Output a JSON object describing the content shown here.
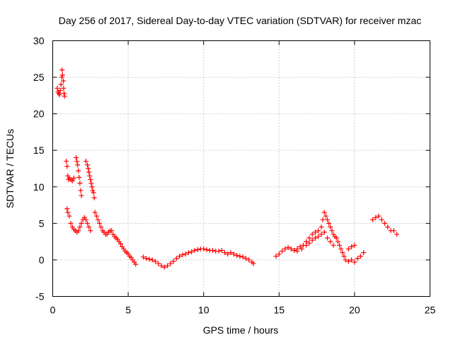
{
  "chart_data": {
    "type": "scatter",
    "title": "Day 256 of 2017, Sidereal Day-to-day VTEC variation (SDTVAR) for receiver mzac",
    "xlabel": "GPS time / hours",
    "ylabel": "SDTVAR / TECUs",
    "xlim": [
      0,
      25
    ],
    "ylim": [
      -5,
      30
    ],
    "xticks": [
      "0",
      "5",
      "10",
      "15",
      "20",
      "25"
    ],
    "yticks": [
      "-5",
      "0",
      "5",
      "10",
      "15",
      "20",
      "25",
      "30"
    ],
    "grid": true,
    "marker": "+",
    "color": "#ff0000",
    "series": [
      {
        "name": "SDTVAR",
        "points": [
          [
            0.3,
            23.5
          ],
          [
            0.35,
            23.0
          ],
          [
            0.4,
            22.8
          ],
          [
            0.45,
            22.6
          ],
          [
            0.5,
            23.2
          ],
          [
            0.55,
            24.0
          ],
          [
            0.6,
            25.0
          ],
          [
            0.62,
            26.0
          ],
          [
            0.65,
            25.3
          ],
          [
            0.7,
            24.5
          ],
          [
            0.72,
            23.5
          ],
          [
            0.75,
            22.8
          ],
          [
            0.78,
            22.4
          ],
          [
            0.9,
            13.5
          ],
          [
            0.95,
            12.8
          ],
          [
            1.0,
            11.5
          ],
          [
            1.05,
            11.0
          ],
          [
            1.1,
            11.2
          ],
          [
            1.2,
            11.0
          ],
          [
            1.3,
            10.8
          ],
          [
            1.4,
            11.2
          ],
          [
            1.55,
            14.0
          ],
          [
            1.6,
            13.5
          ],
          [
            1.65,
            13.0
          ],
          [
            1.7,
            12.2
          ],
          [
            1.75,
            11.3
          ],
          [
            1.8,
            10.5
          ],
          [
            1.85,
            9.5
          ],
          [
            1.9,
            8.8
          ],
          [
            2.2,
            13.5
          ],
          [
            2.3,
            13.0
          ],
          [
            2.35,
            12.5
          ],
          [
            2.4,
            12.0
          ],
          [
            2.45,
            11.5
          ],
          [
            2.5,
            11.0
          ],
          [
            2.55,
            10.5
          ],
          [
            2.6,
            10.0
          ],
          [
            2.65,
            9.5
          ],
          [
            2.7,
            9.2
          ],
          [
            2.75,
            8.5
          ],
          [
            0.95,
            7.0
          ],
          [
            1.0,
            6.5
          ],
          [
            1.1,
            6.0
          ],
          [
            1.2,
            5.0
          ],
          [
            1.3,
            4.5
          ],
          [
            1.4,
            4.2
          ],
          [
            1.5,
            4.0
          ],
          [
            1.6,
            3.8
          ],
          [
            1.7,
            4.0
          ],
          [
            1.8,
            4.5
          ],
          [
            1.9,
            5.0
          ],
          [
            2.0,
            5.5
          ],
          [
            2.1,
            5.8
          ],
          [
            2.2,
            5.5
          ],
          [
            2.3,
            5.0
          ],
          [
            2.4,
            4.5
          ],
          [
            2.5,
            4.0
          ],
          [
            2.8,
            6.5
          ],
          [
            2.9,
            6.0
          ],
          [
            3.0,
            5.5
          ],
          [
            3.1,
            5.0
          ],
          [
            3.2,
            4.5
          ],
          [
            3.3,
            4.0
          ],
          [
            3.4,
            3.8
          ],
          [
            3.5,
            3.5
          ],
          [
            3.6,
            3.5
          ],
          [
            3.7,
            3.8
          ],
          [
            3.8,
            4.0
          ],
          [
            3.9,
            4.0
          ],
          [
            4.0,
            3.5
          ],
          [
            4.1,
            3.2
          ],
          [
            4.2,
            3.0
          ],
          [
            4.3,
            2.8
          ],
          [
            4.4,
            2.5
          ],
          [
            4.5,
            2.2
          ],
          [
            4.6,
            1.8
          ],
          [
            4.7,
            1.5
          ],
          [
            4.8,
            1.2
          ],
          [
            4.9,
            1.0
          ],
          [
            5.0,
            0.8
          ],
          [
            5.1,
            0.5
          ],
          [
            5.2,
            0.3
          ],
          [
            5.3,
            0.0
          ],
          [
            5.4,
            -0.3
          ],
          [
            5.5,
            -0.6
          ],
          [
            6.0,
            0.4
          ],
          [
            6.2,
            0.2
          ],
          [
            6.4,
            0.1
          ],
          [
            6.6,
            0.0
          ],
          [
            6.8,
            -0.2
          ],
          [
            7.0,
            -0.5
          ],
          [
            7.2,
            -0.8
          ],
          [
            7.4,
            -1.0
          ],
          [
            7.6,
            -0.8
          ],
          [
            7.8,
            -0.5
          ],
          [
            8.0,
            -0.2
          ],
          [
            8.2,
            0.2
          ],
          [
            8.4,
            0.5
          ],
          [
            8.6,
            0.7
          ],
          [
            8.8,
            0.8
          ],
          [
            9.0,
            1.0
          ],
          [
            9.2,
            1.1
          ],
          [
            9.4,
            1.3
          ],
          [
            9.6,
            1.4
          ],
          [
            9.8,
            1.5
          ],
          [
            10.0,
            1.5
          ],
          [
            10.2,
            1.4
          ],
          [
            10.4,
            1.3
          ],
          [
            10.6,
            1.3
          ],
          [
            10.8,
            1.2
          ],
          [
            11.0,
            1.2
          ],
          [
            11.2,
            1.3
          ],
          [
            11.4,
            1.0
          ],
          [
            11.6,
            0.8
          ],
          [
            11.8,
            1.0
          ],
          [
            12.0,
            0.8
          ],
          [
            12.2,
            0.6
          ],
          [
            12.4,
            0.5
          ],
          [
            12.6,
            0.4
          ],
          [
            12.8,
            0.2
          ],
          [
            13.0,
            0.0
          ],
          [
            13.2,
            -0.3
          ],
          [
            13.3,
            -0.5
          ],
          [
            14.8,
            0.5
          ],
          [
            15.0,
            0.8
          ],
          [
            15.2,
            1.2
          ],
          [
            15.4,
            1.5
          ],
          [
            15.6,
            1.7
          ],
          [
            15.8,
            1.5
          ],
          [
            16.0,
            1.3
          ],
          [
            16.2,
            1.5
          ],
          [
            16.4,
            1.8
          ],
          [
            16.6,
            2.0
          ],
          [
            16.8,
            2.5
          ],
          [
            17.0,
            3.0
          ],
          [
            17.2,
            3.5
          ],
          [
            17.4,
            3.8
          ],
          [
            17.6,
            4.0
          ],
          [
            17.8,
            4.5
          ],
          [
            17.9,
            5.5
          ],
          [
            18.0,
            6.5
          ],
          [
            18.1,
            6.0
          ],
          [
            18.2,
            5.5
          ],
          [
            18.3,
            5.0
          ],
          [
            18.4,
            4.5
          ],
          [
            18.5,
            4.0
          ],
          [
            18.6,
            3.5
          ],
          [
            18.7,
            3.2
          ],
          [
            18.8,
            3.0
          ],
          [
            18.9,
            2.5
          ],
          [
            19.0,
            2.0
          ],
          [
            19.1,
            1.5
          ],
          [
            19.2,
            1.0
          ],
          [
            19.3,
            0.5
          ],
          [
            19.4,
            0.0
          ],
          [
            19.6,
            -0.2
          ],
          [
            19.8,
            0.0
          ],
          [
            20.0,
            -0.3
          ],
          [
            20.2,
            0.2
          ],
          [
            20.4,
            0.5
          ],
          [
            20.6,
            1.0
          ],
          [
            16.2,
            1.2
          ],
          [
            16.5,
            1.5
          ],
          [
            16.8,
            2.0
          ],
          [
            17.0,
            2.3
          ],
          [
            17.2,
            2.7
          ],
          [
            17.4,
            3.0
          ],
          [
            17.6,
            3.2
          ],
          [
            17.8,
            3.5
          ],
          [
            18.0,
            3.8
          ],
          [
            18.2,
            3.0
          ],
          [
            18.4,
            2.5
          ],
          [
            18.6,
            2.0
          ],
          [
            19.6,
            1.5
          ],
          [
            19.8,
            1.8
          ],
          [
            20.0,
            2.0
          ],
          [
            21.2,
            5.5
          ],
          [
            21.4,
            5.8
          ],
          [
            21.6,
            6.0
          ],
          [
            21.8,
            5.5
          ],
          [
            22.0,
            5.0
          ],
          [
            22.2,
            4.5
          ],
          [
            22.4,
            4.0
          ],
          [
            22.6,
            4.0
          ],
          [
            22.8,
            3.5
          ]
        ]
      }
    ]
  }
}
